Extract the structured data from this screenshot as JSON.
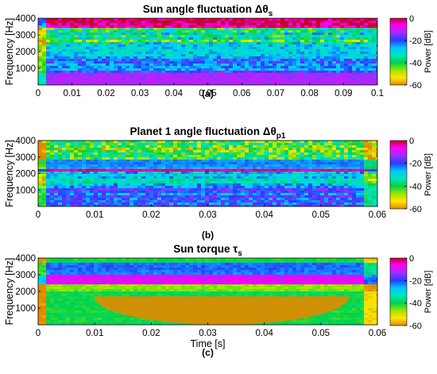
{
  "colors": {
    "colormap_high_to_low": [
      "#c8002a",
      "#ff00ff",
      "#9b30ff",
      "#2a3cff",
      "#00c8ff",
      "#00e6b8",
      "#00d24a",
      "#9be600",
      "#ffe600",
      "#e08a00"
    ]
  },
  "chart_data": [
    {
      "type": "heatmap",
      "title_text": "Sun angle fluctuation Δθ",
      "title_subscript": "s",
      "caption": "(a)",
      "xlabel": "",
      "ylabel": "Frequency [Hz]",
      "xlim": [
        0,
        0.1
      ],
      "ylim": [
        0,
        4000
      ],
      "x_ticks": [
        "0",
        "0.01",
        "0.02",
        "0.03",
        "0.04",
        "0.05",
        "0.06",
        "0.07",
        "0.08",
        "0.09",
        "0.1"
      ],
      "y_ticks": [
        "1000",
        "2000",
        "3000",
        "4000"
      ],
      "colorbar": {
        "label": "Power [dB]",
        "range": [
          -60,
          0
        ],
        "ticks": [
          "0",
          "-20",
          "-40",
          "-60"
        ]
      },
      "bands": [
        {
          "f_low": 3400,
          "f_high": 4000,
          "power_db": -2,
          "pattern": "high-frequency cone from t=0, fluctuating burst pattern"
        },
        {
          "f_low": 2500,
          "f_high": 3400,
          "power_db": -35,
          "pattern": "noisy mixed"
        },
        {
          "f_low": 1600,
          "f_high": 2500,
          "power_db": -28,
          "pattern": "horizontal streaks"
        },
        {
          "f_low": 700,
          "f_high": 1600,
          "power_db": -22,
          "pattern": "horizontal streaks"
        },
        {
          "f_low": 0,
          "f_high": 700,
          "power_db": -12,
          "pattern": "smooth"
        }
      ]
    },
    {
      "type": "heatmap",
      "title_text": "Planet 1 angle fluctuation Δθ",
      "title_subscript": "p1",
      "caption": "(b)",
      "xlabel": "",
      "ylabel": "Frequency [Hz]",
      "xlim": [
        0,
        0.06
      ],
      "ylim": [
        0,
        4000
      ],
      "x_ticks": [
        "0",
        "0.01",
        "0.02",
        "0.03",
        "0.04",
        "0.05",
        "0.06"
      ],
      "y_ticks": [
        "1000",
        "2000",
        "3000",
        "4000"
      ],
      "colorbar": {
        "label": "Power [dB]",
        "range": [
          -60,
          0
        ],
        "ticks": [
          "0",
          "-20",
          "-40",
          "-60"
        ]
      },
      "bands": [
        {
          "f_low": 2900,
          "f_high": 4000,
          "power_db": -45,
          "pattern": "noisy mixed"
        },
        {
          "f_low": 2250,
          "f_high": 2900,
          "power_db": -24,
          "pattern": "smooth"
        },
        {
          "f_low": 2050,
          "f_high": 2250,
          "power_db": -3,
          "pattern": "narrow ridge"
        },
        {
          "f_low": 1200,
          "f_high": 2050,
          "power_db": -30,
          "pattern": "horizontal streaks"
        },
        {
          "f_low": 0,
          "f_high": 1200,
          "power_db": -22,
          "pattern": "horizontal streaks"
        }
      ]
    },
    {
      "type": "heatmap",
      "title_text": "Sun torque τ",
      "title_subscript": "s",
      "caption": "(c)",
      "xlabel": "Time [s]",
      "ylabel": "Frequency [Hz]",
      "xlim": [
        0,
        0.06
      ],
      "ylim": [
        0,
        4000
      ],
      "x_ticks": [
        "0",
        "0.01",
        "0.02",
        "0.03",
        "0.04",
        "0.05",
        "0.06"
      ],
      "y_ticks": [
        "1000",
        "2000",
        "3000",
        "4000"
      ],
      "colorbar": {
        "label": "Power [dB]",
        "range": [
          -60,
          0
        ],
        "ticks": [
          "0",
          "-20",
          "-40",
          "-60"
        ]
      },
      "bands": [
        {
          "f_low": 3700,
          "f_high": 4000,
          "power_db": -40,
          "pattern": "smooth"
        },
        {
          "f_low": 3000,
          "f_high": 3700,
          "power_db": -22,
          "pattern": "smooth"
        },
        {
          "f_low": 2500,
          "f_high": 3000,
          "power_db": -8,
          "pattern": "narrow ridge"
        },
        {
          "f_low": 2000,
          "f_high": 2500,
          "power_db": -45,
          "pattern": "smooth"
        },
        {
          "f_low": 0,
          "f_high": 2000,
          "power_db": -40,
          "pattern": "smooth"
        }
      ],
      "regions": [
        {
          "shape": "semi-ellipse",
          "t_from": 0.01,
          "t_to": 0.055,
          "f_low": 0,
          "f_high": 1700,
          "power_db": -60
        }
      ]
    }
  ]
}
